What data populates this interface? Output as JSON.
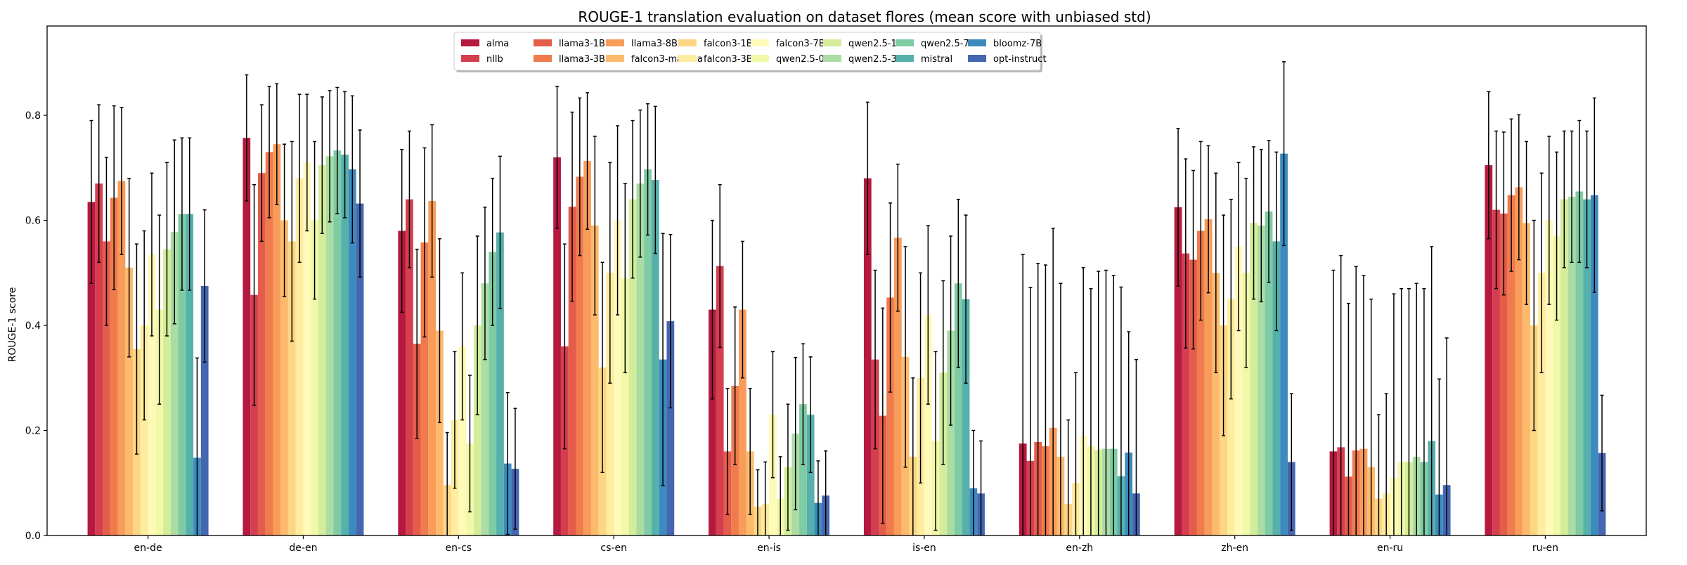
{
  "chart_data": {
    "type": "bar",
    "title": "ROUGE-1 translation evaluation on dataset flores (mean score with unbiased std)",
    "xlabel": "",
    "ylabel": "ROUGE-1 score",
    "ylim": [
      0,
      0.97
    ],
    "yticks": [
      "0.0",
      "0.2",
      "0.4",
      "0.6",
      "0.8"
    ],
    "grid": false,
    "legend_position": "top-center",
    "error_bars": true,
    "categories": [
      "en-de",
      "de-en",
      "en-cs",
      "cs-en",
      "en-is",
      "is-en",
      "en-zh",
      "zh-en",
      "en-ru",
      "ru-en"
    ],
    "series": [
      {
        "name": "alma",
        "color": "#b5193f",
        "values": [
          0.635,
          0.757,
          0.58,
          0.72,
          0.43,
          0.68,
          0.175,
          0.625,
          0.16,
          0.705
        ],
        "errors": [
          0.155,
          0.12,
          0.155,
          0.135,
          0.17,
          0.145,
          0.36,
          0.15,
          0.345,
          0.14
        ]
      },
      {
        "name": "nllb",
        "color": "#d53e4f",
        "values": [
          0.67,
          0.458,
          0.64,
          0.36,
          0.513,
          0.335,
          0.142,
          0.537,
          0.168,
          0.62
        ],
        "errors": [
          0.15,
          0.21,
          0.13,
          0.195,
          0.155,
          0.17,
          0.33,
          0.18,
          0.365,
          0.15
        ]
      },
      {
        "name": "llama3-1B",
        "color": "#e45c4a",
        "values": [
          0.56,
          0.69,
          0.365,
          0.626,
          0.16,
          0.228,
          0.178,
          0.525,
          0.112,
          0.613
        ],
        "errors": [
          0.16,
          0.13,
          0.18,
          0.18,
          0.12,
          0.205,
          0.34,
          0.17,
          0.33,
          0.155
        ]
      },
      {
        "name": "llama3-3B",
        "color": "#f07b4c",
        "values": [
          0.643,
          0.73,
          0.558,
          0.683,
          0.285,
          0.453,
          0.17,
          0.58,
          0.162,
          0.648
        ],
        "errors": [
          0.175,
          0.125,
          0.18,
          0.15,
          0.15,
          0.18,
          0.345,
          0.17,
          0.35,
          0.145
        ]
      },
      {
        "name": "llama3-8B",
        "color": "#f99c59",
        "values": [
          0.675,
          0.745,
          0.637,
          0.713,
          0.43,
          0.567,
          0.205,
          0.602,
          0.165,
          0.663
        ],
        "errors": [
          0.14,
          0.115,
          0.145,
          0.13,
          0.13,
          0.14,
          0.38,
          0.14,
          0.33,
          0.138
        ]
      },
      {
        "name": "falcon3-mamba",
        "color": "#fdba6c",
        "values": [
          0.51,
          0.6,
          0.39,
          0.59,
          0.16,
          0.34,
          0.15,
          0.5,
          0.13,
          0.595
        ],
        "errors": [
          0.17,
          0.145,
          0.175,
          0.17,
          0.12,
          0.21,
          0.33,
          0.19,
          0.32,
          0.155
        ]
      },
      {
        "name": "falcon3-1B",
        "color": "#fdd683",
        "values": [
          0.355,
          0.56,
          0.096,
          0.32,
          0.055,
          0.15,
          0.06,
          0.4,
          0.07,
          0.4
        ],
        "errors": [
          0.2,
          0.19,
          0.1,
          0.2,
          0.07,
          0.15,
          0.16,
          0.21,
          0.16,
          0.2
        ]
      },
      {
        "name": "falcon3-3B",
        "color": "#feec9f",
        "values": [
          0.4,
          0.68,
          0.22,
          0.5,
          0.06,
          0.3,
          0.1,
          0.45,
          0.08,
          0.5
        ],
        "errors": [
          0.18,
          0.16,
          0.13,
          0.21,
          0.08,
          0.2,
          0.21,
          0.19,
          0.19,
          0.19
        ]
      },
      {
        "name": "falcon3-7B",
        "color": "#fffab8",
        "values": [
          0.535,
          0.71,
          0.36,
          0.6,
          0.23,
          0.42,
          0.19,
          0.55,
          0.11,
          0.6
        ],
        "errors": [
          0.155,
          0.13,
          0.14,
          0.18,
          0.12,
          0.17,
          0.32,
          0.16,
          0.35,
          0.16
        ]
      },
      {
        "name": "qwen2.5-0.5B",
        "color": "#f1f9a9",
        "values": [
          0.43,
          0.6,
          0.175,
          0.49,
          0.07,
          0.18,
          0.17,
          0.5,
          0.14,
          0.57
        ],
        "errors": [
          0.18,
          0.15,
          0.13,
          0.18,
          0.08,
          0.17,
          0.3,
          0.18,
          0.33,
          0.16
        ]
      },
      {
        "name": "qwen2.5-1.5B",
        "color": "#d4ed9b",
        "values": [
          0.545,
          0.705,
          0.4,
          0.64,
          0.13,
          0.31,
          0.163,
          0.595,
          0.14,
          0.64
        ],
        "errors": [
          0.165,
          0.13,
          0.17,
          0.15,
          0.12,
          0.175,
          0.34,
          0.145,
          0.33,
          0.13
        ]
      },
      {
        "name": "qwen2.5-3B",
        "color": "#aadca4",
        "values": [
          0.578,
          0.722,
          0.48,
          0.67,
          0.194,
          0.39,
          0.165,
          0.59,
          0.15,
          0.645
        ],
        "errors": [
          0.175,
          0.125,
          0.145,
          0.14,
          0.145,
          0.18,
          0.34,
          0.145,
          0.33,
          0.125
        ]
      },
      {
        "name": "qwen2.5-7B",
        "color": "#7ecba4",
        "values": [
          0.612,
          0.733,
          0.54,
          0.697,
          0.25,
          0.48,
          0.165,
          0.617,
          0.14,
          0.655
        ],
        "errors": [
          0.145,
          0.12,
          0.14,
          0.125,
          0.115,
          0.16,
          0.33,
          0.135,
          0.33,
          0.135
        ]
      },
      {
        "name": "mistral",
        "color": "#56b0ab",
        "values": [
          0.612,
          0.725,
          0.577,
          0.677,
          0.23,
          0.45,
          0.113,
          0.56,
          0.18,
          0.64
        ],
        "errors": [
          0.145,
          0.12,
          0.145,
          0.14,
          0.11,
          0.16,
          0.36,
          0.17,
          0.37,
          0.13
        ]
      },
      {
        "name": "bloomz-7B",
        "color": "#3c8bbe",
        "values": [
          0.148,
          0.697,
          0.137,
          0.335,
          0.062,
          0.09,
          0.158,
          0.727,
          0.078,
          0.648
        ],
        "errors": [
          0.19,
          0.14,
          0.135,
          0.24,
          0.08,
          0.11,
          0.23,
          0.175,
          0.22,
          0.185
        ]
      },
      {
        "name": "opt-instruct",
        "color": "#4566b0",
        "values": [
          0.475,
          0.632,
          0.127,
          0.408,
          0.076,
          0.08,
          0.08,
          0.14,
          0.096,
          0.157
        ],
        "errors": [
          0.145,
          0.14,
          0.115,
          0.165,
          0.085,
          0.1,
          0.255,
          0.13,
          0.28,
          0.11
        ]
      }
    ]
  }
}
